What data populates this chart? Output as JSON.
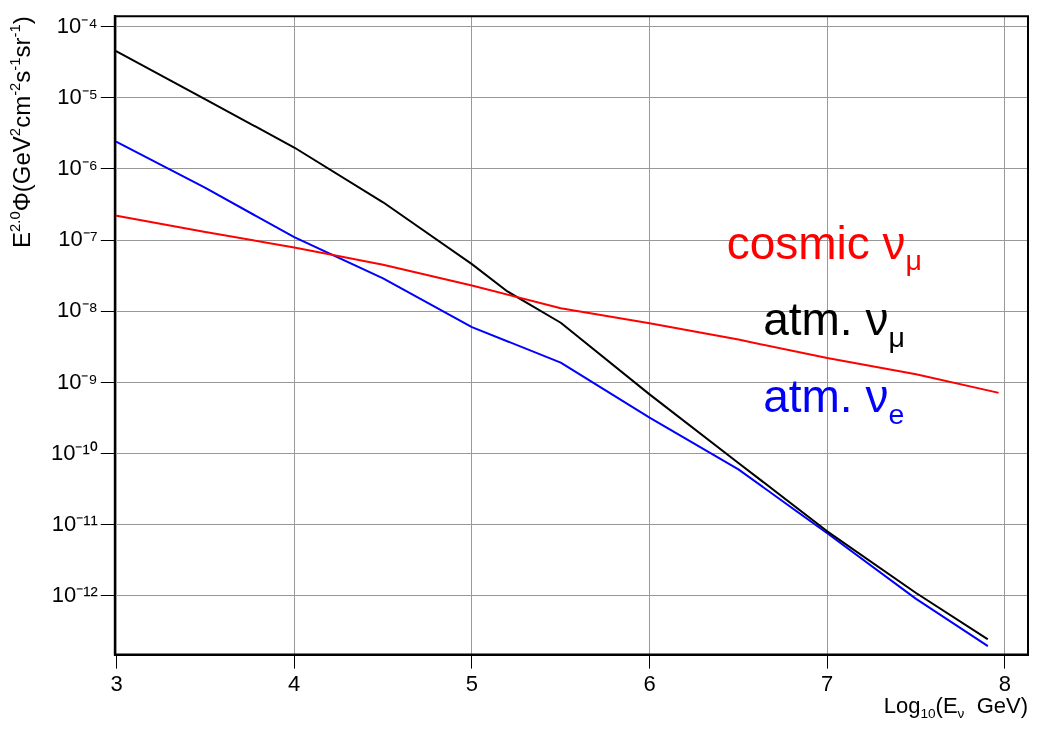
{
  "chart_data": {
    "type": "line",
    "xlabel": "Log$_{10}$(E$_{ν}$  GeV)",
    "ylabel": "E$^{2.0}$Φ(GeV$^{2}$cm$^{-2}$s$^{-1}$sr$^{-1}$)",
    "log": "y",
    "grid": true,
    "legend": false,
    "marker": "none",
    "line_style": "solid",
    "xlim": [
      2.99,
      8.13
    ],
    "xticks": [
      3,
      4,
      5,
      6,
      7,
      8
    ],
    "ylim": [
      1.5e-13,
      0.00014
    ],
    "yticks": [
      {
        "value": 0.0001,
        "label": "10⁻⁴"
      },
      {
        "value": 1e-05,
        "label": "10⁻⁵"
      },
      {
        "value": 1e-06,
        "label": "10⁻⁶"
      },
      {
        "value": 1e-07,
        "label": "10⁻⁷"
      },
      {
        "value": 1e-08,
        "label": "10⁻⁸"
      },
      {
        "value": 1e-09,
        "label": "10⁻⁹"
      },
      {
        "value": 1e-10,
        "label": "10⁻¹⁰"
      },
      {
        "value": 1e-11,
        "label": "10⁻¹¹"
      },
      {
        "value": 1e-12,
        "label": "10⁻¹²"
      }
    ],
    "series": [
      {
        "name": "cosmic ν$_{μ}$",
        "color": "#ff0000",
        "x": [
          3,
          3.5,
          4,
          4.5,
          5,
          5.5,
          6,
          6.5,
          7,
          7.5,
          7.96
        ],
        "values": [
          2.2e-07,
          1.3e-07,
          7.9e-08,
          4.5e-08,
          2.3e-08,
          1.1e-08,
          6.8e-09,
          4e-09,
          2.2e-09,
          1.3e-09,
          7.2e-10
        ]
      },
      {
        "name": "atm. ν$_{μ}$",
        "color": "#000000",
        "x": [
          3,
          3.5,
          4,
          4.5,
          5,
          5.2,
          5.5,
          6,
          6.5,
          7,
          7.5,
          7.9
        ],
        "values": [
          4.5e-05,
          9.5e-06,
          2e-06,
          3.4e-07,
          4.6e-08,
          1.9e-08,
          6.9e-09,
          6.8e-10,
          7.4e-11,
          8.1e-12,
          1.1e-12,
          2.5e-13
        ]
      },
      {
        "name": "atm. ν$_{e}$",
        "color": "#0000ff",
        "x": [
          3,
          3.5,
          4,
          4.5,
          5,
          5.5,
          6,
          6.5,
          7,
          7.5,
          7.9
        ],
        "values": [
          2.4e-06,
          5.4e-07,
          1.1e-07,
          2.9e-08,
          6e-09,
          1.9e-09,
          3.2e-10,
          6e-11,
          7.6e-12,
          9.1e-13,
          2e-13
        ]
      }
    ]
  }
}
